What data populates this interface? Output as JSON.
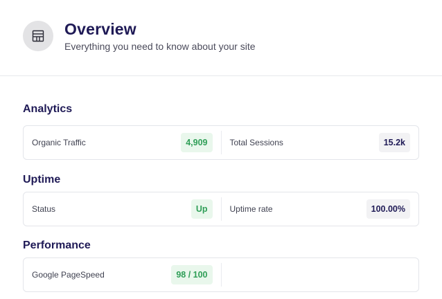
{
  "header": {
    "title": "Overview",
    "subtitle": "Everything you need to know about your site",
    "icon": "dashboard-icon"
  },
  "sections": [
    {
      "title": "Analytics",
      "metrics": [
        {
          "label": "Organic Traffic",
          "value": "4,909",
          "style": "green"
        },
        {
          "label": "Total Sessions",
          "value": "15.2k",
          "style": "gray"
        }
      ]
    },
    {
      "title": "Uptime",
      "metrics": [
        {
          "label": "Status",
          "value": "Up",
          "style": "green"
        },
        {
          "label": "Uptime rate",
          "value": "100.00%",
          "style": "gray"
        }
      ]
    },
    {
      "title": "Performance",
      "metrics": [
        {
          "label": "Google PageSpeed",
          "value": "98 / 100",
          "style": "green"
        }
      ]
    }
  ],
  "colors": {
    "accent_green": "#2f9e57",
    "title": "#1f1a56"
  }
}
